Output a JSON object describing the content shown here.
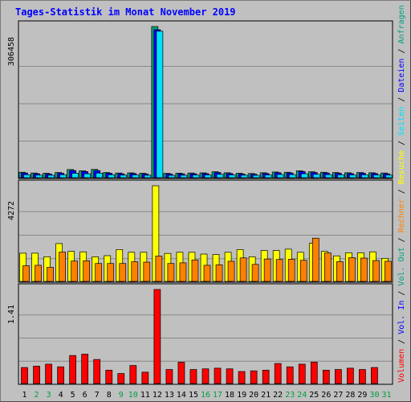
{
  "title": "Tages-Statistik im Monat November 2019",
  "colors": {
    "title": "#0000ff",
    "anfragen": "#009f7f",
    "dateien": "#0000ff",
    "seiten": "#00e0ff",
    "besuche": "#ffff00",
    "rechner": "#ff8000",
    "kbytes": "#ff0000",
    "panel_bg": "#c0c0c0",
    "grid": "#888888",
    "label_green": "#009f3f",
    "label_black": "#000000"
  },
  "chart_data": [
    {
      "type": "bar",
      "panel": "top",
      "ylabel": "306458",
      "ymax": 306458,
      "categories": [
        "1",
        "2",
        "3",
        "4",
        "5",
        "6",
        "7",
        "8",
        "9",
        "10",
        "11",
        "12",
        "13",
        "14",
        "15",
        "16",
        "17",
        "18",
        "19",
        "20",
        "21",
        "22",
        "23",
        "24",
        "25",
        "26",
        "27",
        "28",
        "29",
        "30",
        "31"
      ],
      "weekend_days": [
        2,
        3,
        9,
        10,
        16,
        17,
        23,
        24,
        30,
        31
      ],
      "series": [
        {
          "name": "Anfragen",
          "color_key": "anfragen",
          "values": [
            11000,
            9500,
            9000,
            10500,
            16500,
            14000,
            16800,
            10500,
            9500,
            9800,
            9000,
            306458,
            8800,
            9200,
            9500,
            9800,
            12000,
            10000,
            9000,
            8500,
            10000,
            11500,
            11000,
            14000,
            12000,
            11000,
            10500,
            10000,
            10500,
            10000,
            9500
          ]
        },
        {
          "name": "Dateien",
          "color_key": "dateien",
          "values": [
            9500,
            8000,
            7500,
            9000,
            14500,
            12500,
            14500,
            9000,
            8000,
            8500,
            7500,
            300000,
            7500,
            7800,
            8000,
            8300,
            10500,
            8500,
            7500,
            7000,
            8500,
            10000,
            9500,
            12500,
            10500,
            9500,
            9000,
            8500,
            9000,
            8500,
            8000
          ]
        },
        {
          "name": "Seiten",
          "color_key": "seiten",
          "values": [
            6000,
            5200,
            5000,
            6000,
            9000,
            8000,
            9300,
            5800,
            5200,
            5500,
            5000,
            297000,
            4800,
            5000,
            5300,
            5600,
            6800,
            5500,
            5000,
            4800,
            5500,
            6500,
            6200,
            8000,
            6800,
            6200,
            5800,
            5500,
            5800,
            5500,
            5300
          ]
        }
      ]
    },
    {
      "type": "bar",
      "panel": "middle",
      "ylabel": "4272",
      "ymax": 4272,
      "categories": [
        "1",
        "2",
        "3",
        "4",
        "5",
        "6",
        "7",
        "8",
        "9",
        "10",
        "11",
        "12",
        "13",
        "14",
        "15",
        "16",
        "17",
        "18",
        "19",
        "20",
        "21",
        "22",
        "23",
        "24",
        "25",
        "26",
        "27",
        "28",
        "29",
        "30",
        "31"
      ],
      "series": [
        {
          "name": "Besuche",
          "color_key": "besuche",
          "values": [
            1260,
            1260,
            1100,
            1690,
            1340,
            1320,
            1100,
            1150,
            1420,
            1300,
            1300,
            4272,
            1250,
            1300,
            1300,
            1220,
            1200,
            1300,
            1420,
            1100,
            1380,
            1380,
            1440,
            1300,
            1700,
            1340,
            1140,
            1280,
            1280,
            1320,
            1030
          ]
        },
        {
          "name": "Rechner",
          "color_key": "rechner",
          "values": [
            700,
            720,
            630,
            1310,
            910,
            920,
            800,
            800,
            800,
            880,
            860,
            1130,
            800,
            830,
            960,
            720,
            740,
            900,
            1050,
            760,
            1000,
            980,
            990,
            940,
            1930,
            1270,
            880,
            1060,
            1040,
            930,
            900
          ]
        }
      ]
    },
    {
      "type": "bar",
      "panel": "bottom",
      "ylabel": "1.41",
      "ymax": 1.41,
      "categories": [
        "1",
        "2",
        "3",
        "4",
        "5",
        "6",
        "7",
        "8",
        "9",
        "10",
        "11",
        "12",
        "13",
        "14",
        "15",
        "16",
        "17",
        "18",
        "19",
        "20",
        "21",
        "22",
        "23",
        "24",
        "25",
        "26",
        "27",
        "28",
        "29",
        "30",
        "31"
      ],
      "series": [
        {
          "name": "Volumen",
          "color_key": "kbytes",
          "values": [
            0.24,
            0.26,
            0.29,
            0.25,
            0.42,
            0.44,
            0.36,
            0.2,
            0.15,
            0.27,
            0.17,
            1.41,
            0.21,
            0.32,
            0.21,
            0.22,
            0.23,
            0.22,
            0.18,
            0.19,
            0.2,
            0.3,
            0.25,
            0.29,
            0.32,
            0.2,
            0.21,
            0.23,
            0.21,
            0.24,
            0.0
          ]
        }
      ]
    }
  ],
  "right_legend": [
    {
      "text": "Volumen",
      "color_key": "kbytes"
    },
    {
      "text": " / ",
      "color_key": "label_black"
    },
    {
      "text": "Vol. In",
      "color_key": "dateien"
    },
    {
      "text": " / ",
      "color_key": "label_black"
    },
    {
      "text": "Vol. Out",
      "color_key": "anfragen"
    },
    {
      "text": " / ",
      "color_key": "label_black"
    },
    {
      "text": "Rechner",
      "color_key": "rechner"
    },
    {
      "text": " / ",
      "color_key": "label_black"
    },
    {
      "text": "Besuche",
      "color_key": "besuche"
    },
    {
      "text": " / ",
      "color_key": "label_black"
    },
    {
      "text": "Seiten",
      "color_key": "seiten"
    },
    {
      "text": " / ",
      "color_key": "label_black"
    },
    {
      "text": "Dateien",
      "color_key": "dateien"
    },
    {
      "text": " / ",
      "color_key": "label_black"
    },
    {
      "text": "Anfragen",
      "color_key": "anfragen"
    }
  ]
}
